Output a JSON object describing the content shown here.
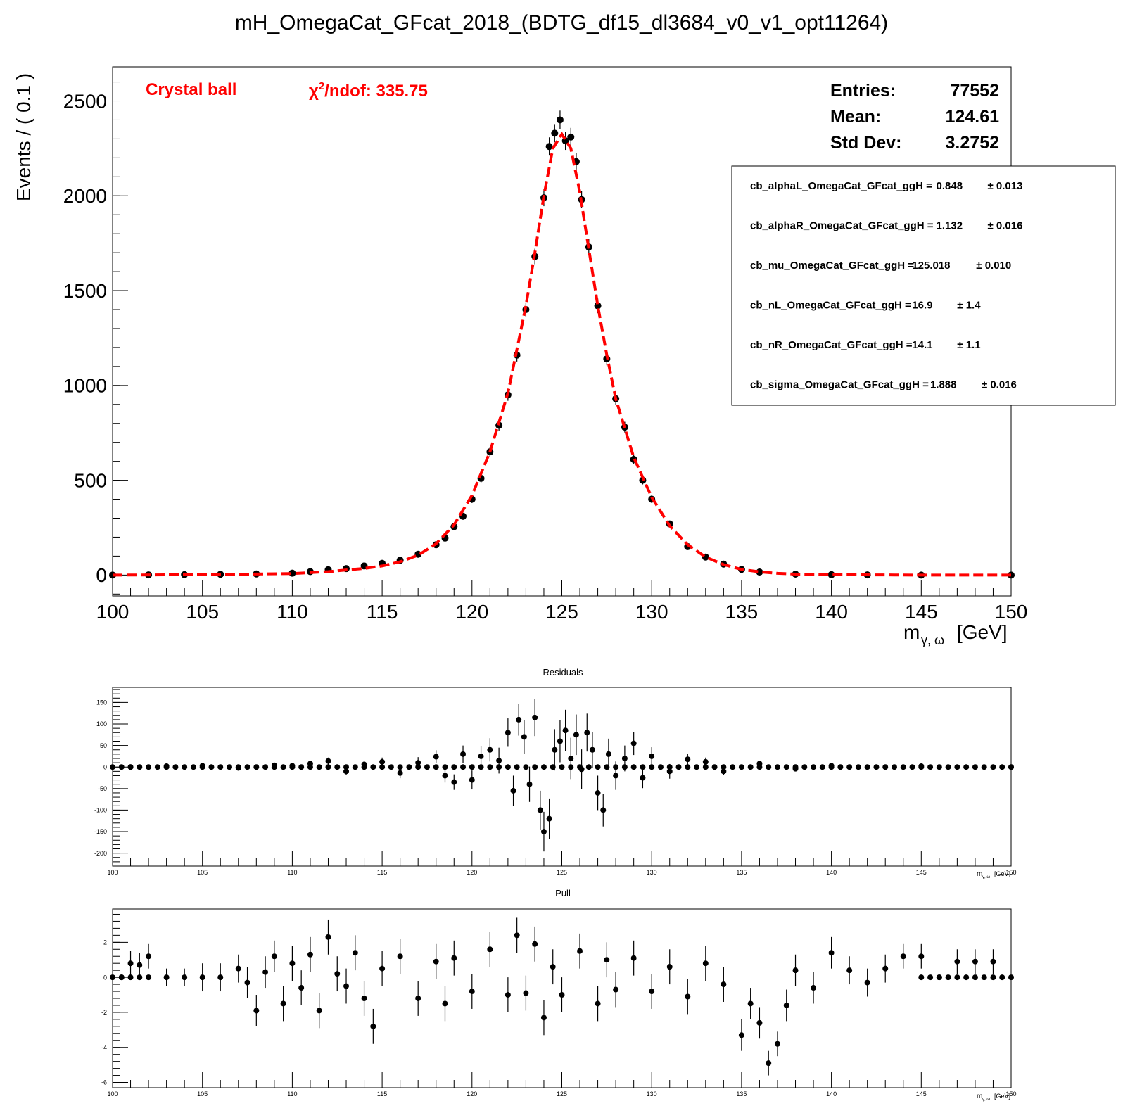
{
  "chart_data": [
    {
      "type": "scatter",
      "title": "mH_OmegaCat_GFcat_2018_(BDTG_df15_dl3684_v0_v1_opt11264)",
      "ylabel": "Events / ( 0.1 )",
      "xlabel_main": "m",
      "xlabel_sub": "γ, ω",
      "xlabel_unit": "[GeV]",
      "xlim": [
        100,
        150
      ],
      "ylim": [
        -110,
        2680
      ],
      "x_ticks": [
        "100",
        "105",
        "110",
        "115",
        "120",
        "125",
        "130",
        "135",
        "140",
        "145",
        "150"
      ],
      "y_ticks": [
        "0",
        "500",
        "1000",
        "1500",
        "2000",
        "2500"
      ],
      "fit_label": "Crystal ball",
      "chi2_prefix": "χ",
      "chi2_sup": "2",
      "chi2_suffix": "/ndof: 335.75",
      "stats": [
        {
          "label": "Entries:",
          "value": "77552"
        },
        {
          "label": "Mean:",
          "value": "124.61"
        },
        {
          "label": "Std Dev:",
          "value": "3.2752"
        }
      ],
      "params": [
        {
          "name": "cb_alphaL_OmegaCat_GFcat_ggH =",
          "value": "0.848",
          "error": "± 0.013"
        },
        {
          "name": "cb_alphaR_OmegaCat_GFcat_ggH =",
          "value": "1.132",
          "error": "± 0.016"
        },
        {
          "name": "cb_mu_OmegaCat_GFcat_ggH =",
          "value": "125.018",
          "error": "± 0.010"
        },
        {
          "name": "cb_nL_OmegaCat_GFcat_ggH =",
          "value": "16.9",
          "error": "± 1.4"
        },
        {
          "name": "cb_nR_OmegaCat_GFcat_ggH =",
          "value": "14.1",
          "error": "± 1.1"
        },
        {
          "name": "cb_sigma_OmegaCat_GFcat_ggH =",
          "value": "1.888",
          "error": "± 0.016"
        }
      ],
      "fit_curve": {
        "x": [
          100,
          105,
          110,
          112,
          114,
          115,
          116,
          117,
          118,
          119,
          120,
          121,
          122,
          123,
          123.5,
          124,
          124.5,
          125,
          125.5,
          126,
          126.5,
          127,
          127.5,
          128,
          129,
          130,
          131,
          132,
          133,
          134,
          135,
          136,
          137,
          138,
          140,
          145,
          150
        ],
        "y": [
          0,
          2,
          8,
          18,
          35,
          48,
          70,
          105,
          165,
          265,
          420,
          650,
          960,
          1420,
          1700,
          2000,
          2250,
          2325,
          2250,
          2020,
          1720,
          1420,
          1160,
          930,
          620,
          410,
          260,
          160,
          95,
          55,
          30,
          17,
          9,
          5,
          2,
          0,
          0
        ],
        "color": "#ff0000"
      },
      "data_points": {
        "x": [
          100,
          102,
          104,
          106,
          108,
          110,
          111,
          112,
          113,
          114,
          115,
          116,
          117,
          118,
          118.5,
          119,
          119.5,
          120,
          120.5,
          121,
          121.5,
          122,
          122.5,
          123,
          123.5,
          124,
          124.3,
          124.6,
          124.9,
          125.2,
          125.5,
          125.8,
          126.1,
          126.5,
          127,
          127.5,
          128,
          128.5,
          129,
          129.5,
          130,
          131,
          132,
          133,
          134,
          135,
          136,
          138,
          140,
          142,
          145,
          150
        ],
        "y": [
          0,
          1,
          2,
          4,
          6,
          10,
          18,
          28,
          34,
          48,
          62,
          78,
          110,
          160,
          195,
          255,
          310,
          400,
          510,
          650,
          790,
          950,
          1160,
          1400,
          1680,
          1990,
          2260,
          2330,
          2400,
          2290,
          2310,
          2180,
          1980,
          1730,
          1420,
          1140,
          930,
          780,
          610,
          500,
          400,
          270,
          150,
          95,
          58,
          30,
          16,
          5,
          2,
          1,
          0,
          0
        ],
        "err": [
          0,
          1,
          2,
          2,
          3,
          4,
          4,
          6,
          6,
          7,
          8,
          9,
          11,
          13,
          14,
          16,
          18,
          20,
          23,
          26,
          28,
          31,
          34,
          38,
          41,
          45,
          48,
          48,
          49,
          48,
          48,
          47,
          45,
          42,
          38,
          34,
          31,
          28,
          25,
          22,
          20,
          16,
          12,
          10,
          8,
          6,
          4,
          2,
          1,
          1,
          0,
          0
        ]
      }
    },
    {
      "type": "scatter",
      "title": "Residuals",
      "xlabel_main": "m",
      "xlabel_sub": "γ, ω",
      "xlabel_unit": "[GeV]",
      "xlim": [
        100,
        150
      ],
      "ylim": [
        -230,
        185
      ],
      "x_ticks": [
        "100",
        "105",
        "110",
        "115",
        "120",
        "125",
        "130",
        "135",
        "140",
        "145",
        "150"
      ],
      "y_ticks": [
        "150",
        "100",
        "50",
        "0",
        "-50",
        "-100",
        "-150",
        "-200"
      ],
      "x": [
        101,
        103,
        105,
        107,
        109,
        110,
        111,
        112,
        113,
        114,
        115,
        116,
        117,
        118,
        118.5,
        119,
        119.5,
        120,
        120.5,
        121,
        121.5,
        122,
        122.3,
        122.6,
        122.9,
        123.2,
        123.5,
        123.8,
        124,
        124.3,
        124.6,
        124.9,
        125.2,
        125.5,
        125.8,
        126.1,
        126.4,
        126.7,
        127,
        127.3,
        127.6,
        128,
        128.5,
        129,
        129.5,
        130,
        131,
        132,
        133,
        134,
        136,
        138,
        140,
        145,
        150
      ],
      "y": [
        0,
        2,
        3,
        -2,
        4,
        3,
        8,
        14,
        -10,
        6,
        12,
        -14,
        10,
        24,
        -20,
        -35,
        30,
        -30,
        25,
        40,
        15,
        80,
        -55,
        110,
        70,
        -40,
        115,
        -100,
        -150,
        -120,
        40,
        60,
        85,
        20,
        75,
        -5,
        80,
        40,
        -60,
        -100,
        30,
        -20,
        20,
        55,
        -25,
        25,
        -10,
        18,
        12,
        -10,
        8,
        -4,
        3,
        2,
        0
      ],
      "err": [
        1,
        2,
        3,
        3,
        4,
        5,
        6,
        8,
        8,
        9,
        10,
        12,
        13,
        15,
        16,
        18,
        20,
        22,
        24,
        27,
        30,
        33,
        35,
        37,
        39,
        41,
        43,
        45,
        46,
        47,
        48,
        49,
        48,
        48,
        47,
        46,
        44,
        42,
        40,
        38,
        36,
        33,
        30,
        27,
        24,
        21,
        17,
        13,
        10,
        8,
        5,
        3,
        2,
        1,
        1
      ]
    },
    {
      "type": "scatter",
      "title": "Pull",
      "xlabel_main": "m",
      "xlabel_sub": "γ, ω",
      "xlabel_unit": "[GeV]",
      "xlim": [
        100,
        150
      ],
      "ylim": [
        -6.3,
        3.9
      ],
      "x_ticks": [
        "100",
        "105",
        "110",
        "115",
        "120",
        "125",
        "130",
        "135",
        "140",
        "145",
        "150"
      ],
      "y_ticks": [
        "2",
        "0",
        "-2",
        "-4",
        "-6"
      ],
      "x": [
        100.5,
        101,
        101.5,
        102,
        103,
        104,
        105,
        106,
        107,
        107.5,
        108,
        108.5,
        109,
        109.5,
        110,
        110.5,
        111,
        111.5,
        112,
        112.5,
        113,
        113.5,
        114,
        114.5,
        115,
        116,
        117,
        118,
        118.5,
        119,
        120,
        121,
        122,
        122.5,
        123,
        123.5,
        124,
        124.5,
        125,
        126,
        127,
        127.5,
        128,
        129,
        130,
        131,
        132,
        133,
        134,
        135,
        135.5,
        136,
        136.5,
        137,
        137.5,
        138,
        139,
        140,
        141,
        142,
        143,
        144,
        145,
        146,
        147,
        148,
        149
      ],
      "y": [
        0,
        0.8,
        0.7,
        1.2,
        0,
        0,
        0,
        0,
        0.5,
        -0.3,
        -1.9,
        0.3,
        1.2,
        -1.5,
        0.8,
        -0.6,
        1.3,
        -1.9,
        2.3,
        0.2,
        -0.5,
        1.4,
        -1.2,
        -2.8,
        0.5,
        1.2,
        -1.2,
        0.9,
        -1.5,
        1.1,
        -0.8,
        1.6,
        -1.0,
        2.4,
        -0.9,
        1.9,
        -2.3,
        0.6,
        -1.0,
        1.5,
        -1.5,
        1.0,
        -0.7,
        1.1,
        -0.8,
        0.6,
        -1.1,
        0.8,
        -0.4,
        -3.3,
        -1.5,
        -2.6,
        -4.9,
        -3.8,
        -1.6,
        0.4,
        -0.6,
        1.4,
        0.4,
        -0.3,
        0.5,
        1.2,
        1.2,
        0,
        0.9,
        0.9,
        0.9
      ],
      "err": [
        0,
        0.7,
        0.7,
        0.7,
        0.5,
        0.5,
        0.8,
        0.8,
        0.8,
        0.9,
        0.9,
        0.9,
        0.9,
        1.0,
        1.0,
        1.0,
        1.0,
        1.0,
        1.0,
        1.0,
        1.0,
        1.0,
        1.0,
        1.0,
        1.0,
        1.0,
        1.0,
        1.0,
        1.0,
        1.0,
        1.0,
        1.0,
        1.0,
        1.0,
        1.0,
        1.0,
        1.0,
        1.0,
        1.0,
        1.0,
        1.0,
        1.0,
        1.0,
        1.0,
        1.0,
        1.0,
        1.0,
        1.0,
        1.0,
        0.9,
        0.9,
        0.9,
        0.7,
        0.7,
        0.9,
        0.9,
        0.9,
        0.9,
        0.8,
        0.8,
        0.8,
        0.7,
        0.7,
        0,
        0.7,
        0.7,
        0.7
      ]
    }
  ]
}
